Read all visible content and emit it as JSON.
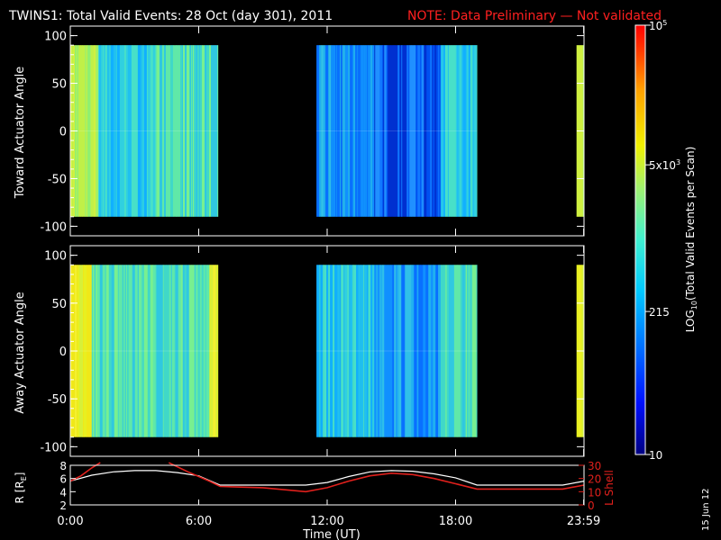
{
  "title": "TWINS1: Total Valid Events: 28 Oct (day 301), 2011",
  "note": "NOTE: Data Preliminary — Not validated",
  "side_date": "15 Jun 12",
  "colors": {
    "background": "#000000",
    "axes": "#ffffff",
    "note": "#ff2020",
    "lshell": "#e0201c",
    "radius": "#ffffff"
  },
  "chart_data": [
    {
      "type": "heatmap",
      "ylabel": "Toward Actuator Angle",
      "ylim": [
        -110,
        110
      ],
      "yticks": [
        100,
        50,
        0,
        -50,
        -100
      ],
      "ytick_labels": [
        "100",
        "50",
        "0",
        "-50",
        "-100"
      ],
      "xlim_hours": [
        0,
        24
      ],
      "value_range_deg": [
        -90,
        90
      ],
      "coverage_hours": [
        [
          0.0,
          6.9
        ],
        [
          11.5,
          19.0
        ],
        [
          23.65,
          24.0
        ]
      ],
      "level_summary": [
        {
          "interval_hours": [
            0.0,
            1.3
          ],
          "level": "green-yellow"
        },
        {
          "interval_hours": [
            1.3,
            4.0
          ],
          "level": "cyan"
        },
        {
          "interval_hours": [
            4.0,
            6.9
          ],
          "level": "cyan-green"
        },
        {
          "interval_hours": [
            11.5,
            14.2
          ],
          "level": "blue-cyan"
        },
        {
          "interval_hours": [
            14.2,
            17.3
          ],
          "level": "blue"
        },
        {
          "interval_hours": [
            17.3,
            19.0
          ],
          "level": "cyan"
        },
        {
          "interval_hours": [
            23.65,
            24.0
          ],
          "level": "green-yellow"
        }
      ]
    },
    {
      "type": "heatmap",
      "ylabel": "Away Actuator Angle",
      "ylim": [
        -110,
        110
      ],
      "yticks": [
        100,
        50,
        0,
        -50,
        -100
      ],
      "ytick_labels": [
        "100",
        "50",
        "0",
        "-50",
        "-100"
      ],
      "xlim_hours": [
        0,
        24
      ],
      "value_range_deg": [
        -90,
        90
      ],
      "coverage_hours": [
        [
          0.0,
          6.9
        ],
        [
          11.5,
          19.0
        ],
        [
          23.65,
          24.0
        ]
      ],
      "level_summary": [
        {
          "interval_hours": [
            0.0,
            1.0
          ],
          "level": "yellow"
        },
        {
          "interval_hours": [
            1.0,
            6.5
          ],
          "level": "cyan-green"
        },
        {
          "interval_hours": [
            6.5,
            6.9
          ],
          "level": "yellow"
        },
        {
          "interval_hours": [
            11.5,
            14.2
          ],
          "level": "cyan"
        },
        {
          "interval_hours": [
            14.2,
            17.3
          ],
          "level": "blue-cyan"
        },
        {
          "interval_hours": [
            17.3,
            19.0
          ],
          "level": "cyan-green"
        },
        {
          "interval_hours": [
            23.65,
            24.0
          ],
          "level": "yellow"
        }
      ]
    },
    {
      "type": "line",
      "xlabel": "Time (UT)",
      "xticks_hours": [
        0,
        6,
        12,
        18,
        23.983
      ],
      "xtick_labels": [
        "0:00",
        "6:00",
        "12:00",
        "18:00",
        "23:59"
      ],
      "left_axis": {
        "label": "R [R_E]",
        "label_main": "R [R",
        "label_sub": "E",
        "label_tail": "]",
        "ylim": [
          2,
          8
        ],
        "yticks": [
          2,
          4,
          6,
          8
        ],
        "ytick_labels": [
          "2",
          "4",
          "6",
          "8"
        ]
      },
      "right_axis": {
        "label": "L Shell",
        "ylim": [
          0,
          30
        ],
        "yticks": [
          0,
          10,
          20,
          30
        ],
        "ytick_labels": [
          "0",
          "10",
          "20",
          "30"
        ]
      },
      "series": [
        {
          "axis": "left",
          "hours": [
            0,
            1,
            2,
            3,
            4,
            5,
            6,
            7,
            8,
            9,
            10,
            11,
            12,
            13,
            14,
            15,
            16,
            17,
            18,
            19,
            20,
            21,
            22,
            23,
            24
          ],
          "values": [
            5.6,
            6.5,
            7.0,
            7.2,
            7.2,
            6.9,
            6.4,
            5.0,
            5.0,
            5.0,
            5.0,
            5.0,
            5.4,
            6.3,
            7.0,
            7.2,
            7.1,
            6.7,
            6.1,
            5.0,
            5.0,
            5.0,
            5.0,
            5.0,
            5.6
          ]
        },
        {
          "axis": "right",
          "hours": [
            0,
            0.5,
            1.0,
            1.4,
            1.4,
            4.6,
            4.6,
            5.5,
            6.5,
            7.0,
            9.0,
            11.0,
            12.0,
            13.0,
            14.0,
            15.0,
            16.0,
            17.0,
            18.0,
            19.0,
            21.0,
            23.0,
            24.0
          ],
          "values": [
            18,
            22,
            28,
            32,
            null,
            null,
            32,
            25,
            18,
            14,
            13,
            10,
            13,
            18,
            22,
            24,
            23,
            20,
            16,
            12,
            12,
            12,
            15
          ]
        }
      ]
    }
  ],
  "colorbar": {
    "label_main": "LOG",
    "label_sub": "10",
    "label_tail": "(Total Valid  Events per Scan)",
    "scale": "log",
    "range": [
      10,
      100000
    ],
    "tick_values": [
      10,
      215,
      5000,
      100000
    ],
    "tick_labels": [
      {
        "main": "10",
        "sup": ""
      },
      {
        "main": "215",
        "sup": ""
      },
      {
        "main": "5x10",
        "sup": "3"
      },
      {
        "main": "10",
        "sup": "5"
      }
    ]
  }
}
